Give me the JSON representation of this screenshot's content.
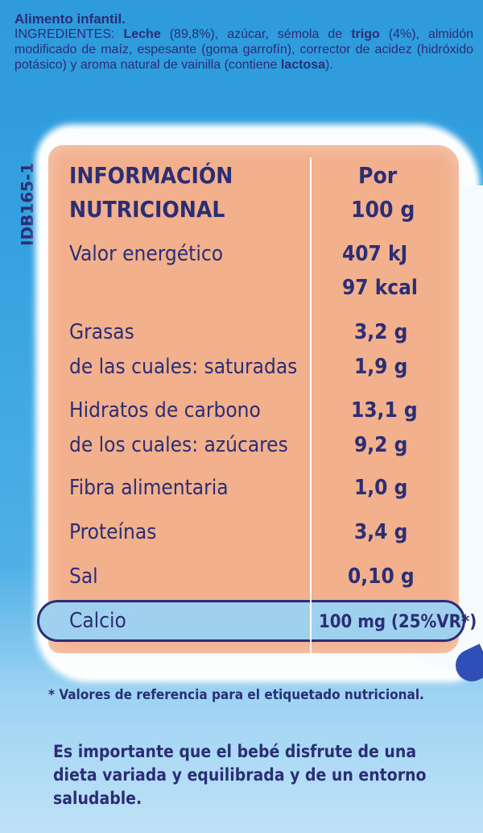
{
  "ingredients": {
    "title": "Alimento infantil.",
    "parts": [
      {
        "text": "INGREDIENTES: ",
        "bold": false
      },
      {
        "text": "Leche",
        "bold": true
      },
      {
        "text": " (89,8%), azúcar, sémola de ",
        "bold": false
      },
      {
        "text": "trigo",
        "bold": true
      },
      {
        "text": " (4%), almidón modificado de maíz, espesante (goma garrofín), corrector de acidez (hidróxido potásico) y aroma natural de vainilla (contiene ",
        "bold": false
      },
      {
        "text": "lactosa",
        "bold": true
      },
      {
        "text": ").",
        "bold": false
      }
    ]
  },
  "product_code": "IDB165-1",
  "table": {
    "header_left": [
      "INFORMACIÓN",
      "NUTRICIONAL"
    ],
    "header_right": [
      "Por",
      "100 g"
    ],
    "rows": [
      {
        "label": "Valor energético",
        "value": "407 kJ"
      },
      {
        "label": "",
        "value": "97 kcal"
      },
      {
        "label": "Grasas",
        "value": "3,2 g"
      },
      {
        "label": "de las cuales: saturadas",
        "value": "1,9 g"
      },
      {
        "label": "Hidratos de carbono",
        "value": "13,1 g"
      },
      {
        "label": "de los cuales: azúcares",
        "value": "9,2 g"
      },
      {
        "label": "Fibra alimentaria",
        "value": "1,0 g"
      },
      {
        "label": "Proteínas",
        "value": "3,4 g"
      },
      {
        "label": "Sal",
        "value": "0,10 g"
      },
      {
        "label": "Calcio",
        "value": "100 mg (25%VR*)"
      }
    ]
  },
  "footnote": "* Valores de referencia para el etiquetado nutricional.",
  "message": "Es importante que el bebé disfrute de una dieta variada y equilibrada y de un entorno saludable.",
  "colors": {
    "text": "#2b2d75",
    "panel": "#f2b08d",
    "highlight": "#9fd0ee",
    "background": "#34a2e0"
  }
}
